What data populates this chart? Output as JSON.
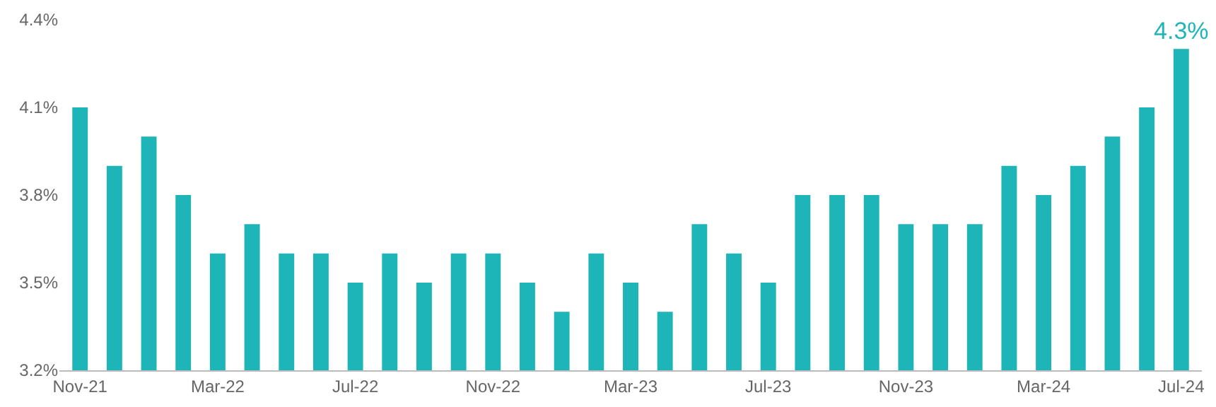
{
  "chart_data": {
    "type": "bar",
    "categories": [
      "Nov-21",
      null,
      null,
      null,
      "Mar-22",
      null,
      null,
      null,
      "Jul-22",
      null,
      null,
      null,
      "Nov-22",
      null,
      null,
      null,
      "Mar-23",
      null,
      null,
      null,
      "Jul-23",
      null,
      null,
      null,
      "Nov-23",
      null,
      null,
      null,
      "Mar-24",
      null,
      null,
      null,
      "Jul-24"
    ],
    "values": [
      4.1,
      3.9,
      4.0,
      3.8,
      3.6,
      3.7,
      3.6,
      3.6,
      3.5,
      3.6,
      3.5,
      3.6,
      3.6,
      3.5,
      3.4,
      3.6,
      3.5,
      3.4,
      3.7,
      3.6,
      3.5,
      3.8,
      3.8,
      3.8,
      3.7,
      3.7,
      3.7,
      3.9,
      3.8,
      3.9,
      4.0,
      4.1,
      4.3
    ],
    "value_labels": [
      null,
      null,
      null,
      null,
      null,
      null,
      null,
      null,
      null,
      null,
      null,
      null,
      null,
      null,
      null,
      null,
      null,
      null,
      null,
      null,
      null,
      null,
      null,
      null,
      null,
      null,
      null,
      null,
      null,
      null,
      null,
      null,
      "4.3%"
    ],
    "color": "#1db5b8",
    "ylim": [
      3.2,
      4.4
    ],
    "yticks": [
      {
        "value": 3.2,
        "label": "3.2%"
      },
      {
        "value": 3.5,
        "label": "3.5%"
      },
      {
        "value": 3.8,
        "label": "3.8%"
      },
      {
        "value": 4.1,
        "label": "4.1%"
      },
      {
        "value": 4.4,
        "label": "4.4%"
      }
    ],
    "grid": false,
    "legend": false
  }
}
